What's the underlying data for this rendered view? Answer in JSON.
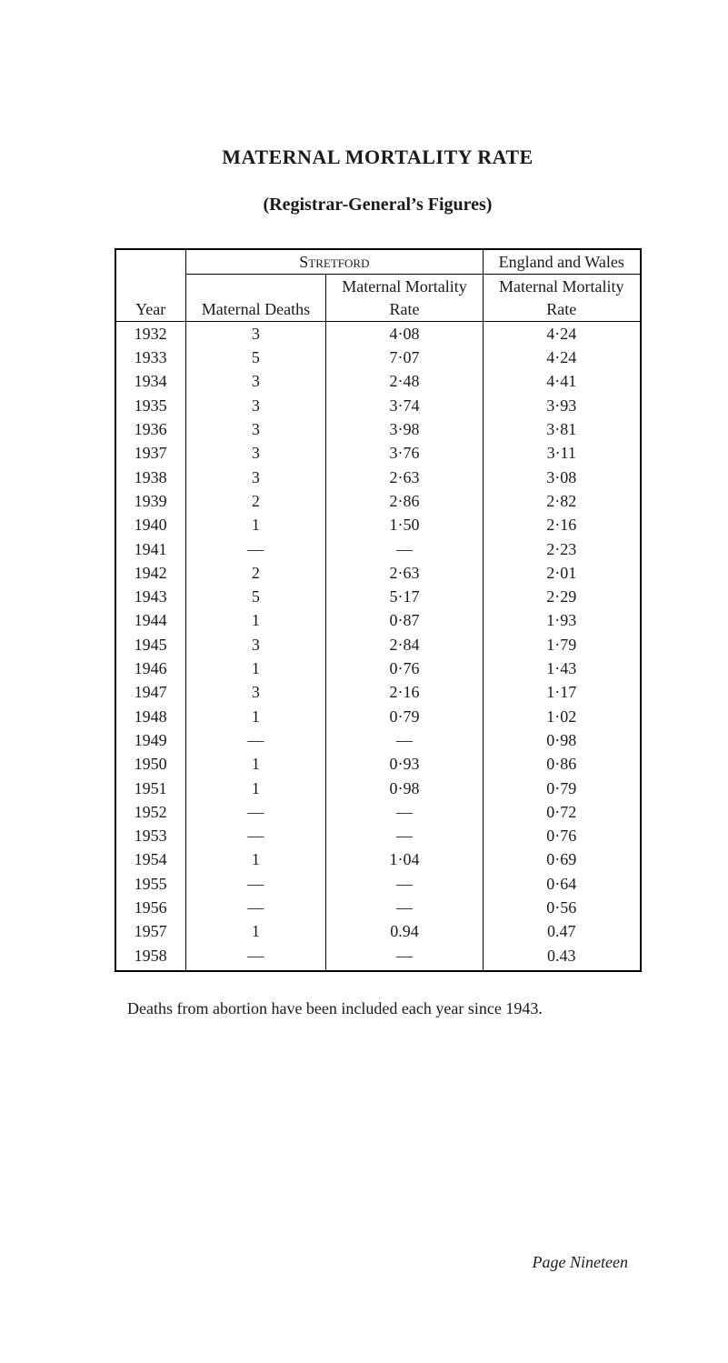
{
  "title": "MATERNAL MORTALITY RATE",
  "subtitle": "(Registrar-General’s Figures)",
  "table": {
    "type": "table",
    "header_group_stretford": "Stretford",
    "header_group_engwales": "England and Wales",
    "col_year": "Year",
    "col_md": "Maternal Deaths",
    "col_smmr": "Maternal Mortality\nRate",
    "col_ewmmr": "Maternal Mortality\nRate",
    "rows": [
      {
        "year": "1932",
        "md": "3",
        "smmr": "4·08",
        "ew": "4·24"
      },
      {
        "year": "1933",
        "md": "5",
        "smmr": "7·07",
        "ew": "4·24"
      },
      {
        "year": "1934",
        "md": "3",
        "smmr": "2·48",
        "ew": "4·41"
      },
      {
        "year": "1935",
        "md": "3",
        "smmr": "3·74",
        "ew": "3·93"
      },
      {
        "year": "1936",
        "md": "3",
        "smmr": "3·98",
        "ew": "3·81"
      },
      {
        "year": "1937",
        "md": "3",
        "smmr": "3·76",
        "ew": "3·11"
      },
      {
        "year": "1938",
        "md": "3",
        "smmr": "2·63",
        "ew": "3·08"
      },
      {
        "year": "1939",
        "md": "2",
        "smmr": "2·86",
        "ew": "2·82"
      },
      {
        "year": "1940",
        "md": "1",
        "smmr": "1·50",
        "ew": "2·16"
      },
      {
        "year": "1941",
        "md": "—",
        "smmr": "—",
        "ew": "2·23"
      },
      {
        "year": "1942",
        "md": "2",
        "smmr": "2·63",
        "ew": "2·01"
      },
      {
        "year": "1943",
        "md": "5",
        "smmr": "5·17",
        "ew": "2·29"
      },
      {
        "year": "1944",
        "md": "1",
        "smmr": "0·87",
        "ew": "1·93"
      },
      {
        "year": "1945",
        "md": "3",
        "smmr": "2·84",
        "ew": "1·79"
      },
      {
        "year": "1946",
        "md": "1",
        "smmr": "0·76",
        "ew": "1·43"
      },
      {
        "year": "1947",
        "md": "3",
        "smmr": "2·16",
        "ew": "1·17"
      },
      {
        "year": "1948",
        "md": "1",
        "smmr": "0·79",
        "ew": "1·02"
      },
      {
        "year": "1949",
        "md": "—",
        "smmr": "—",
        "ew": "0·98"
      },
      {
        "year": "1950",
        "md": "1",
        "smmr": "0·93",
        "ew": "0·86"
      },
      {
        "year": "1951",
        "md": "1",
        "smmr": "0·98",
        "ew": "0·79"
      },
      {
        "year": "1952",
        "md": "—",
        "smmr": "—",
        "ew": "0·72"
      },
      {
        "year": "1953",
        "md": "—",
        "smmr": "—",
        "ew": "0·76"
      },
      {
        "year": "1954",
        "md": "1",
        "smmr": "1·04",
        "ew": "0·69"
      },
      {
        "year": "1955",
        "md": "—",
        "smmr": "—",
        "ew": "0·64"
      },
      {
        "year": "1956",
        "md": "—",
        "smmr": "—",
        "ew": "0·56"
      },
      {
        "year": "1957",
        "md": "1",
        "smmr": "0.94",
        "ew": "0.47"
      },
      {
        "year": "1958",
        "md": "—",
        "smmr": "—",
        "ew": "0.43"
      }
    ],
    "colors": {
      "border": "#000000",
      "text": "#1a1a1a",
      "background": "#ffffff"
    },
    "font_family": "Times New Roman",
    "font_size_pt": 13
  },
  "note": "Deaths from abortion have been included each year since 1943.",
  "page_number": "Page  Nineteen"
}
